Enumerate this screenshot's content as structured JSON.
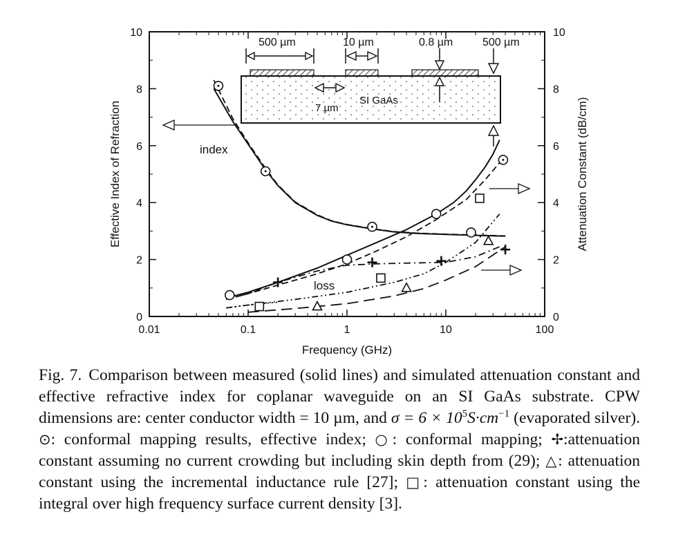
{
  "chart_data": {
    "type": "line",
    "title": "",
    "xlabel": "Frequency (GHz)",
    "ylabel_left": "Effective Index of Refraction",
    "ylabel_right": "Attenuation Constant (dB/cm)",
    "xscale": "log",
    "xlim": [
      0.01,
      100
    ],
    "ylim_left": [
      0,
      10
    ],
    "ylim_right": [
      0,
      10
    ],
    "grid": false,
    "x_ticks": [
      "0.01",
      "0.1",
      "1",
      "10",
      "100"
    ],
    "y_ticks_left": [
      "0",
      "2",
      "4",
      "6",
      "8",
      "10"
    ],
    "y_ticks_right": [
      "0",
      "2",
      "4",
      "6",
      "8",
      "10"
    ],
    "annotations": {
      "index": "index",
      "loss": "loss",
      "substrate": "SI GaAs",
      "dim_500a": "500 µm",
      "dim_10": "10 µm",
      "dim_08": "0.8 µm",
      "dim_500b": "500 µm",
      "dim_7": "7 µm"
    },
    "series": [
      {
        "style": "solid",
        "axis": "left",
        "x": [
          0.045,
          0.07,
          0.1,
          0.15,
          0.2,
          0.3,
          0.5,
          0.7,
          1,
          1.5,
          2,
          3,
          5,
          10,
          20,
          40
        ],
        "y": [
          8.0,
          6.85,
          6.05,
          5.15,
          4.6,
          4.0,
          3.55,
          3.35,
          3.22,
          3.12,
          3.05,
          2.97,
          2.92,
          2.88,
          2.85,
          2.82
        ]
      },
      {
        "style": "dashed",
        "axis": "left",
        "x": [
          0.045,
          0.07,
          0.1,
          0.15,
          0.2,
          0.3,
          0.5,
          0.7,
          1,
          1.5,
          2,
          3,
          5,
          10,
          20,
          40
        ],
        "y": [
          8.3,
          6.95,
          6.1,
          5.2,
          4.62,
          4.02,
          3.57,
          3.36,
          3.23,
          3.13,
          3.06,
          2.98,
          2.93,
          2.89,
          2.86,
          2.83
        ]
      },
      {
        "style": "solid",
        "axis": "right",
        "x": [
          0.06,
          0.1,
          0.2,
          0.5,
          1,
          2,
          4,
          8,
          12,
          16,
          20,
          25,
          30,
          35
        ],
        "y": [
          0.65,
          0.85,
          1.2,
          1.7,
          2.15,
          2.6,
          3.05,
          3.6,
          4.0,
          4.4,
          4.8,
          5.25,
          5.7,
          6.2
        ]
      },
      {
        "style": "dashed",
        "axis": "right",
        "x": [
          0.06,
          0.1,
          0.2,
          0.5,
          1,
          2,
          4,
          8,
          16,
          25,
          35
        ],
        "y": [
          0.6,
          0.8,
          1.1,
          1.5,
          1.85,
          2.3,
          2.8,
          3.4,
          4.1,
          4.8,
          5.4
        ]
      },
      {
        "style": "dashdot",
        "axis": "right",
        "x": [
          0.06,
          0.1,
          0.2,
          0.5,
          1,
          2,
          5,
          10,
          20,
          35
        ],
        "y": [
          0.6,
          0.8,
          1.2,
          1.6,
          1.8,
          1.85,
          1.88,
          1.9,
          2.1,
          2.45
        ]
      },
      {
        "style": "dashdotdot",
        "axis": "right",
        "x": [
          0.06,
          0.1,
          0.3,
          1,
          3,
          6,
          10,
          20,
          35
        ],
        "y": [
          0.3,
          0.4,
          0.6,
          0.85,
          1.2,
          1.5,
          1.9,
          2.6,
          3.6
        ]
      },
      {
        "style": "longdash",
        "axis": "right",
        "x": [
          0.1,
          0.3,
          1,
          3,
          6,
          10,
          20,
          40
        ],
        "y": [
          0.15,
          0.28,
          0.45,
          0.72,
          0.98,
          1.28,
          1.75,
          2.45
        ]
      },
      {
        "style": "dotted",
        "axis": "right",
        "x": [
          0.06,
          0.1,
          0.2
        ],
        "y": [
          0.3,
          0.4,
          0.5
        ]
      }
    ],
    "markers": [
      {
        "symbol": "circle-dot",
        "axis": "left",
        "x": [
          0.05,
          0.15,
          1.8,
          38
        ],
        "y": [
          8.1,
          5.1,
          3.15,
          5.5
        ]
      },
      {
        "symbol": "circle",
        "axis": "right",
        "x": [
          0.065,
          1.0,
          8.0,
          18.0
        ],
        "y": [
          0.75,
          2.0,
          3.6,
          2.95
        ]
      },
      {
        "symbol": "plus",
        "axis": "right",
        "x": [
          0.2,
          1.8,
          9.0,
          40.0
        ],
        "y": [
          1.2,
          1.9,
          1.95,
          2.35
        ]
      },
      {
        "symbol": "triangle",
        "axis": "right",
        "x": [
          0.5,
          4.0,
          27.0
        ],
        "y": [
          0.35,
          1.0,
          2.65
        ]
      },
      {
        "symbol": "square",
        "axis": "right",
        "x": [
          0.13,
          2.2,
          22.0
        ],
        "y": [
          0.35,
          1.35,
          4.15
        ]
      }
    ]
  },
  "caption": {
    "label": "Fig. 7.",
    "line1": "Comparison between measured (solid lines) and simulated attenuation constant and effective refractive index for coplanar waveguide on an SI GaAs substrate. CPW dimensions are: center conductor width = 10 µm, and",
    "sigma_a": "σ = 6 × 10",
    "sigma_exp": "5",
    "sigma_b": "S·cm",
    "sigma_exp2": "−1",
    "sigma_c": " (evaporated silver). ",
    "sym_circdot": "⊙",
    "text_circdot": ": conformal mapping results, effective index; ",
    "sym_circle": "○",
    "text_circle": ": conformal mapping; ",
    "sym_plus": "✢",
    "text_plus": ":attenuation constant assuming no current crowding but including skin depth from (29); ",
    "sym_tri": "△",
    "text_tri": ": attenuation constant using the incremental inductance rule [27]; ",
    "sym_sq": "□",
    "text_sq": ": attenuation constant using the integral over high frequency surface current density [3]."
  }
}
